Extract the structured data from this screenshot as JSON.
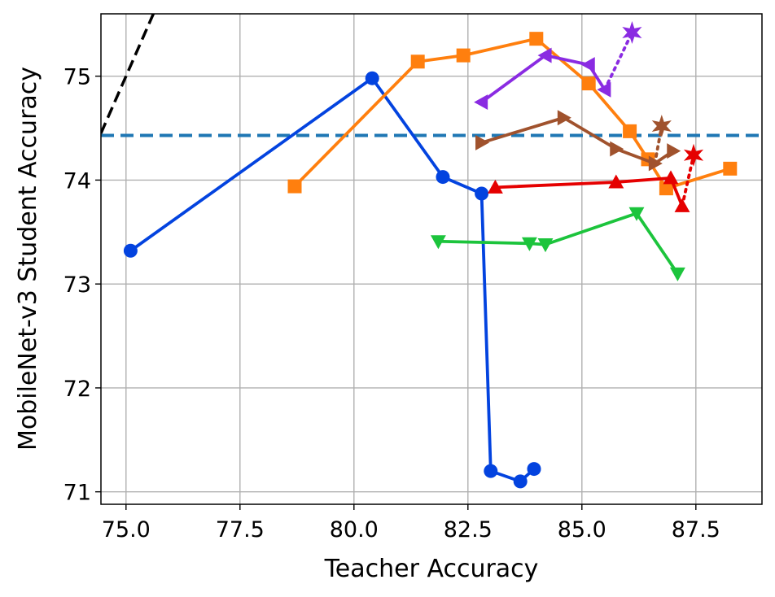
{
  "chart_data": {
    "type": "line",
    "xlabel": "Teacher Accuracy",
    "ylabel": "MobileNet-v3 Student Accuracy",
    "xlim": [
      74.45,
      88.95
    ],
    "ylim": [
      70.88,
      75.6
    ],
    "xticks": [
      {
        "value": 75.0,
        "label": "75.0"
      },
      {
        "value": 77.5,
        "label": "77.5"
      },
      {
        "value": 80.0,
        "label": "80.0"
      },
      {
        "value": 82.5,
        "label": "82.5"
      },
      {
        "value": 85.0,
        "label": "85.0"
      },
      {
        "value": 87.5,
        "label": "87.5"
      }
    ],
    "yticks": [
      {
        "value": 71,
        "label": "71"
      },
      {
        "value": 72,
        "label": "72"
      },
      {
        "value": 73,
        "label": "73"
      },
      {
        "value": 74,
        "label": "74"
      },
      {
        "value": 75,
        "label": "75"
      }
    ],
    "grid": true,
    "reference_lines": [
      {
        "kind": "horizontal",
        "y": 74.43,
        "style": "dashed",
        "color": "#1f77b4"
      },
      {
        "kind": "diagonal",
        "points": [
          [
            74.45,
            74.45
          ],
          [
            75.62,
            75.62
          ]
        ],
        "style": "dashed",
        "color": "#000000"
      }
    ],
    "series": [
      {
        "color": "#0343df",
        "marker": "circle",
        "style": "solid",
        "points": [
          [
            75.1,
            73.32
          ],
          [
            80.4,
            74.98
          ],
          [
            81.95,
            74.03
          ],
          [
            82.8,
            73.87
          ],
          [
            83.0,
            71.2
          ],
          [
            83.65,
            71.1
          ],
          [
            83.95,
            71.22
          ]
        ]
      },
      {
        "color": "#ff7f0e",
        "marker": "square",
        "style": "solid",
        "points": [
          [
            78.7,
            73.94
          ],
          [
            81.4,
            75.14
          ],
          [
            82.4,
            75.2
          ],
          [
            84.0,
            75.36
          ],
          [
            85.15,
            74.93
          ],
          [
            86.05,
            74.47
          ],
          [
            86.45,
            74.2
          ],
          [
            86.85,
            73.92
          ],
          [
            88.25,
            74.11
          ]
        ]
      },
      {
        "color": "#8a2be2",
        "marker": "triangle-left",
        "style": "solid",
        "points": [
          [
            82.8,
            74.75
          ],
          [
            84.2,
            75.2
          ],
          [
            85.15,
            75.11
          ],
          [
            85.5,
            74.87
          ]
        ]
      },
      {
        "color": "#8a2be2",
        "marker": "none",
        "style": "dotted",
        "points": [
          [
            85.5,
            74.87
          ],
          [
            86.1,
            75.42
          ]
        ]
      },
      {
        "color": "#8a2be2",
        "marker": "star",
        "style": "none",
        "points": [
          [
            86.1,
            75.42
          ]
        ]
      },
      {
        "color": "#a0522d",
        "marker": "triangle-right",
        "style": "solid",
        "points": [
          [
            82.8,
            74.36
          ],
          [
            84.6,
            74.6
          ],
          [
            85.75,
            74.3
          ],
          [
            86.6,
            74.16
          ],
          [
            87.0,
            74.28
          ]
        ]
      },
      {
        "color": "#a0522d",
        "marker": "none",
        "style": "dotted",
        "points": [
          [
            86.6,
            74.16
          ],
          [
            86.75,
            74.52
          ]
        ]
      },
      {
        "color": "#a0522d",
        "marker": "star",
        "style": "none",
        "points": [
          [
            86.75,
            74.52
          ]
        ]
      },
      {
        "color": "#e50000",
        "marker": "triangle-up",
        "style": "solid",
        "points": [
          [
            83.1,
            73.93
          ],
          [
            85.75,
            73.98
          ],
          [
            86.95,
            74.02
          ],
          [
            87.2,
            73.75
          ]
        ]
      },
      {
        "color": "#e50000",
        "marker": "none",
        "style": "dotted",
        "points": [
          [
            87.2,
            73.75
          ],
          [
            87.45,
            74.24
          ]
        ]
      },
      {
        "color": "#e50000",
        "marker": "star",
        "style": "none",
        "points": [
          [
            87.45,
            74.24
          ]
        ]
      },
      {
        "color": "#1cc43c",
        "marker": "triangle-down",
        "style": "solid",
        "points": [
          [
            81.85,
            73.41
          ],
          [
            83.85,
            73.39
          ],
          [
            84.2,
            73.38
          ],
          [
            86.2,
            73.68
          ],
          [
            87.1,
            73.1
          ]
        ]
      }
    ]
  }
}
